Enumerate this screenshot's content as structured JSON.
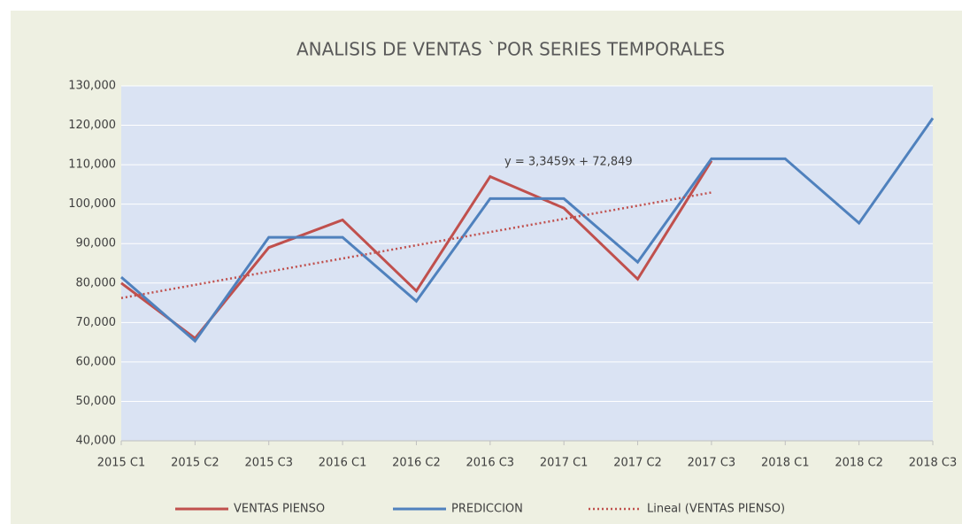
{
  "chart_data": {
    "type": "line",
    "title": "ANALISIS DE VENTAS `POR SERIES TEMPORALES",
    "categories": [
      "2015 C1",
      "2015 C2",
      "2015 C3",
      "2016 C1",
      "2016 C2",
      "2016 C3",
      "2017 C1",
      "2017 C2",
      "2017 C3",
      "2018 C1",
      "2018 C2",
      "2018 C3"
    ],
    "series": [
      {
        "name": "VENTAS PIENSO",
        "color": "#c0504d",
        "values": [
          80000,
          66000,
          89000,
          96000,
          78000,
          107000,
          99000,
          81000,
          111000,
          null,
          null,
          null
        ]
      },
      {
        "name": "PREDICCION",
        "color": "#4f81bd",
        "values": [
          81500,
          65300,
          91600,
          91600,
          75400,
          101400,
          101400,
          85300,
          111500,
          111500,
          95200,
          121800
        ]
      }
    ],
    "trendline": {
      "name": "Lineal (VENTAS PIENSO)",
      "color": "#c0504d",
      "equation": "y = 3,3459x + 72,849",
      "values": [
        76195,
        79541,
        82887,
        86233,
        89579,
        92924,
        96270,
        99616,
        102962,
        null,
        null,
        null
      ]
    },
    "ylim": [
      40000,
      130000
    ],
    "yticks": [
      {
        "value": 40000,
        "label": "40,000"
      },
      {
        "value": 50000,
        "label": "50,000"
      },
      {
        "value": 60000,
        "label": "60,000"
      },
      {
        "value": 70000,
        "label": "70,000"
      },
      {
        "value": 80000,
        "label": "80,000"
      },
      {
        "value": 90000,
        "label": "90,000"
      },
      {
        "value": 100000,
        "label": "100,000"
      },
      {
        "value": 110000,
        "label": "110,000"
      },
      {
        "value": 120000,
        "label": "120,000"
      },
      {
        "value": 130000,
        "label": "130,000"
      }
    ],
    "grid": true,
    "legend": "bottom"
  }
}
